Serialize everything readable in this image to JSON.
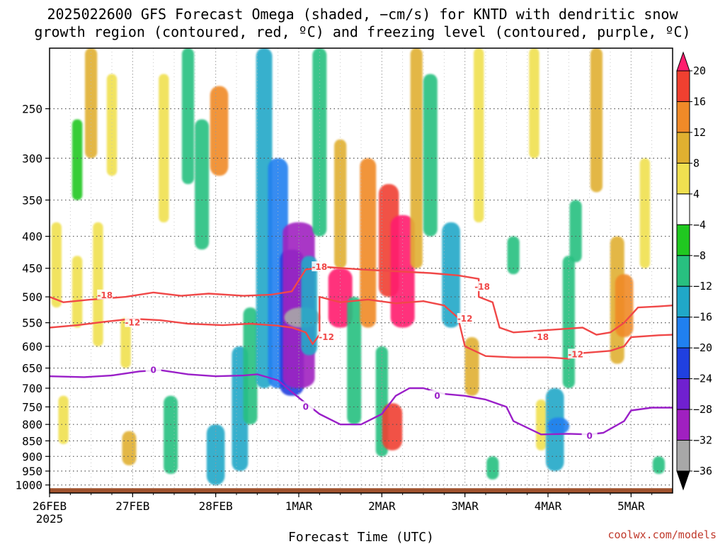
{
  "title": {
    "line1": "2025022600 GFS Forecast Omega (shaded, −cm/s) for KNTD with dendritic snow",
    "line2": "growth region (contoured, red, ºC) and freezing level (contoured, purple, ºC)"
  },
  "xlabel": "Forecast Time (UTC)",
  "credit": "coolwx.com/models",
  "colors": {
    "dgz": "#f04848",
    "freezing": "#9a1fc8",
    "ground": "#a0522d",
    "grid": "#555555"
  },
  "chart_data": {
    "type": "heatmap",
    "title": "2025022600 GFS Forecast Omega (shaded, −cm/s) for KNTD with dendritic snow growth region (contoured, red, ºC) and freezing level (contoured, purple, ºC)",
    "xlabel": "Forecast Time (UTC)",
    "ylabel": "",
    "x_ticks": [
      {
        "label": "26FEB",
        "sublabel": "2025",
        "hour": 0
      },
      {
        "label": "27FEB",
        "sublabel": "",
        "hour": 24
      },
      {
        "label": "28FEB",
        "sublabel": "",
        "hour": 48
      },
      {
        "label": "1MAR",
        "sublabel": "",
        "hour": 72
      },
      {
        "label": "2MAR",
        "sublabel": "",
        "hour": 96
      },
      {
        "label": "3MAR",
        "sublabel": "",
        "hour": 120
      },
      {
        "label": "4MAR",
        "sublabel": "",
        "hour": 144
      },
      {
        "label": "5MAR",
        "sublabel": "",
        "hour": 168
      }
    ],
    "x_range_hours": [
      0,
      180
    ],
    "y_axis": "pressure (hPa), reversed",
    "y_range": [
      1030,
      200
    ],
    "y_ticks": [
      250,
      300,
      350,
      400,
      450,
      500,
      550,
      600,
      650,
      700,
      750,
      800,
      850,
      900,
      950,
      1000
    ],
    "grid": true,
    "colorbar": {
      "labels": [
        "20",
        "16",
        "12",
        "8",
        "4",
        "−4",
        "−8",
        "−12",
        "−16",
        "−20",
        "−24",
        "−28",
        "−32",
        "−36"
      ],
      "colors": [
        "#ff1e6e",
        "#f04030",
        "#f08a28",
        "#e0b030",
        "#f0e050",
        "#ffffff",
        "#20c820",
        "#28c080",
        "#20a8c8",
        "#2080f0",
        "#2040e0",
        "#7020d0",
        "#a020c0",
        "#a8a8a8",
        "#000000"
      ]
    },
    "omega_cells": [
      {
        "hour": 2,
        "p1": 380,
        "p2": 520,
        "value": 6
      },
      {
        "hour": 8,
        "p1": 430,
        "p2": 560,
        "value": 6
      },
      {
        "hour": 14,
        "p1": 380,
        "p2": 600,
        "value": 6
      },
      {
        "hour": 8,
        "p1": 260,
        "p2": 350,
        "value": -6
      },
      {
        "hour": 12,
        "p1": 200,
        "p2": 300,
        "value": 8
      },
      {
        "hour": 18,
        "p1": 220,
        "p2": 320,
        "value": 6
      },
      {
        "hour": 22,
        "p1": 540,
        "p2": 650,
        "value": 6
      },
      {
        "hour": 23,
        "p1": 820,
        "p2": 930,
        "value": 10
      },
      {
        "hour": 4,
        "p1": 720,
        "p2": 860,
        "value": 6
      },
      {
        "hour": 33,
        "p1": 220,
        "p2": 380,
        "value": 6
      },
      {
        "hour": 35,
        "p1": 720,
        "p2": 960,
        "value": -10
      },
      {
        "hour": 40,
        "p1": 200,
        "p2": 330,
        "value": -8
      },
      {
        "hour": 44,
        "p1": 260,
        "p2": 420,
        "value": -10
      },
      {
        "hour": 49,
        "p1": 230,
        "p2": 320,
        "value": 14
      },
      {
        "hour": 48,
        "p1": 800,
        "p2": 1000,
        "value": -14
      },
      {
        "hour": 55,
        "p1": 600,
        "p2": 950,
        "value": -12
      },
      {
        "hour": 58,
        "p1": 520,
        "p2": 800,
        "value": -10
      },
      {
        "hour": 62,
        "p1": 200,
        "p2": 700,
        "value": -12
      },
      {
        "hour": 66,
        "p1": 300,
        "p2": 700,
        "value": -16
      },
      {
        "hour": 70,
        "p1": 420,
        "p2": 720,
        "value": -20
      },
      {
        "hour": 72,
        "p1": 380,
        "p2": 700,
        "value": -28
      },
      {
        "hour": 73,
        "p1": 520,
        "p2": 560,
        "value": -32
      },
      {
        "hour": 75,
        "p1": 430,
        "p2": 620,
        "value": -12
      },
      {
        "hour": 78,
        "p1": 200,
        "p2": 400,
        "value": -10
      },
      {
        "hour": 84,
        "p1": 450,
        "p2": 560,
        "value": 20
      },
      {
        "hour": 84,
        "p1": 280,
        "p2": 450,
        "value": 8
      },
      {
        "hour": 88,
        "p1": 500,
        "p2": 800,
        "value": -10
      },
      {
        "hour": 92,
        "p1": 300,
        "p2": 560,
        "value": 12
      },
      {
        "hour": 96,
        "p1": 600,
        "p2": 900,
        "value": -8
      },
      {
        "hour": 98,
        "p1": 330,
        "p2": 500,
        "value": 16
      },
      {
        "hour": 99,
        "p1": 740,
        "p2": 880,
        "value": 16
      },
      {
        "hour": 102,
        "p1": 370,
        "p2": 560,
        "value": 20
      },
      {
        "hour": 106,
        "p1": 200,
        "p2": 450,
        "value": 8
      },
      {
        "hour": 110,
        "p1": 220,
        "p2": 400,
        "value": -10
      },
      {
        "hour": 116,
        "p1": 380,
        "p2": 560,
        "value": -14
      },
      {
        "hour": 122,
        "p1": 580,
        "p2": 720,
        "value": 10
      },
      {
        "hour": 124,
        "p1": 200,
        "p2": 380,
        "value": 6
      },
      {
        "hour": 128,
        "p1": 900,
        "p2": 980,
        "value": -8
      },
      {
        "hour": 134,
        "p1": 400,
        "p2": 460,
        "value": -8
      },
      {
        "hour": 140,
        "p1": 200,
        "p2": 300,
        "value": 6
      },
      {
        "hour": 142,
        "p1": 730,
        "p2": 880,
        "value": 6
      },
      {
        "hour": 146,
        "p1": 700,
        "p2": 950,
        "value": -14
      },
      {
        "hour": 147,
        "p1": 780,
        "p2": 830,
        "value": -18
      },
      {
        "hour": 150,
        "p1": 430,
        "p2": 700,
        "value": -8
      },
      {
        "hour": 152,
        "p1": 350,
        "p2": 440,
        "value": -8
      },
      {
        "hour": 158,
        "p1": 200,
        "p2": 340,
        "value": 8
      },
      {
        "hour": 164,
        "p1": 400,
        "p2": 640,
        "value": 10
      },
      {
        "hour": 166,
        "p1": 460,
        "p2": 580,
        "value": 14
      },
      {
        "hour": 172,
        "p1": 300,
        "p2": 450,
        "value": 6
      },
      {
        "hour": 176,
        "p1": 900,
        "p2": 960,
        "value": -8
      }
    ],
    "contours": [
      {
        "name": "-18",
        "kind": "dgz",
        "label_at": [
          [
            16,
            497
          ],
          [
            78,
            448
          ],
          [
            125,
            482
          ],
          [
            142,
            580
          ]
        ],
        "points": [
          [
            0,
            500
          ],
          [
            4,
            510
          ],
          [
            12,
            505
          ],
          [
            22,
            500
          ],
          [
            30,
            492
          ],
          [
            38,
            498
          ],
          [
            46,
            494
          ],
          [
            56,
            498
          ],
          [
            64,
            496
          ],
          [
            70,
            490
          ],
          [
            74,
            452
          ],
          [
            80,
            448
          ],
          [
            90,
            452
          ],
          [
            100,
            455
          ],
          [
            110,
            458
          ],
          [
            118,
            462
          ],
          [
            124,
            468
          ],
          [
            124,
            500
          ],
          [
            128,
            510
          ],
          [
            130,
            560
          ],
          [
            134,
            570
          ],
          [
            144,
            565
          ],
          [
            154,
            560
          ],
          [
            158,
            575
          ],
          [
            162,
            570
          ],
          [
            166,
            550
          ],
          [
            170,
            520
          ],
          [
            176,
            518
          ],
          [
            180,
            516
          ]
        ]
      },
      {
        "name": "-12",
        "kind": "dgz",
        "label_at": [
          [
            24,
            550
          ],
          [
            80,
            580
          ],
          [
            120,
            542
          ],
          [
            152,
            618
          ]
        ],
        "points": [
          [
            0,
            560
          ],
          [
            8,
            555
          ],
          [
            16,
            548
          ],
          [
            24,
            542
          ],
          [
            32,
            545
          ],
          [
            40,
            552
          ],
          [
            50,
            555
          ],
          [
            58,
            552
          ],
          [
            66,
            556
          ],
          [
            70,
            560
          ],
          [
            74,
            570
          ],
          [
            76,
            595
          ],
          [
            78,
            575
          ],
          [
            78,
            500
          ],
          [
            84,
            510
          ],
          [
            92,
            505
          ],
          [
            100,
            512
          ],
          [
            108,
            508
          ],
          [
            114,
            516
          ],
          [
            118,
            540
          ],
          [
            120,
            600
          ],
          [
            126,
            622
          ],
          [
            134,
            625
          ],
          [
            144,
            625
          ],
          [
            150,
            628
          ],
          [
            154,
            615
          ],
          [
            162,
            610
          ],
          [
            166,
            600
          ],
          [
            168,
            580
          ],
          [
            176,
            576
          ],
          [
            180,
            575
          ]
        ]
      },
      {
        "name": "0",
        "kind": "freezing",
        "label_at": [
          [
            30,
            655
          ],
          [
            74,
            750
          ],
          [
            112,
            720
          ],
          [
            156,
            835
          ]
        ],
        "points": [
          [
            0,
            670
          ],
          [
            10,
            672
          ],
          [
            18,
            668
          ],
          [
            26,
            658
          ],
          [
            32,
            655
          ],
          [
            40,
            665
          ],
          [
            48,
            670
          ],
          [
            56,
            668
          ],
          [
            60,
            665
          ],
          [
            66,
            680
          ],
          [
            70,
            710
          ],
          [
            74,
            740
          ],
          [
            78,
            770
          ],
          [
            84,
            800
          ],
          [
            90,
            800
          ],
          [
            96,
            770
          ],
          [
            100,
            720
          ],
          [
            104,
            700
          ],
          [
            108,
            700
          ],
          [
            114,
            715
          ],
          [
            120,
            720
          ],
          [
            126,
            730
          ],
          [
            132,
            750
          ],
          [
            134,
            790
          ],
          [
            142,
            830
          ],
          [
            150,
            828
          ],
          [
            156,
            830
          ],
          [
            160,
            825
          ],
          [
            166,
            790
          ],
          [
            168,
            760
          ],
          [
            174,
            752
          ],
          [
            180,
            752
          ]
        ]
      }
    ]
  }
}
